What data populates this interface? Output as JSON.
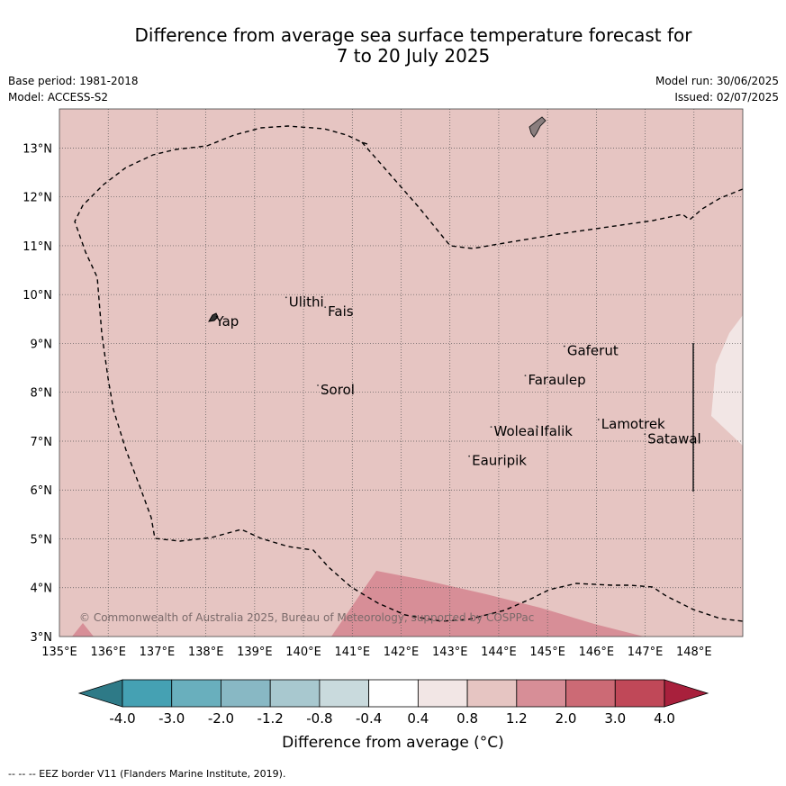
{
  "title": {
    "line1": "Difference from average sea surface temperature forecast for",
    "line2": "7 to 20 July 2025"
  },
  "meta": {
    "base_period": "Base period: 1981-2018",
    "model": "Model: ACCESS-S2",
    "model_run": "Model run: 30/06/2025",
    "issued": "Issued: 02/07/2025"
  },
  "map": {
    "lon_range": [
      135,
      149
    ],
    "lat_range": [
      3,
      13.8
    ],
    "x_ticks": [
      "135°E",
      "136°E",
      "137°E",
      "138°E",
      "139°E",
      "140°E",
      "141°E",
      "142°E",
      "143°E",
      "144°E",
      "145°E",
      "146°E",
      "147°E",
      "148°E"
    ],
    "y_ticks": [
      "3°N",
      "4°N",
      "5°N",
      "6°N",
      "7°N",
      "8°N",
      "9°N",
      "10°N",
      "11°N",
      "12°N",
      "13°N"
    ],
    "background_color": "#e6c5c2",
    "places": [
      {
        "name": "Yap",
        "lon": 138.2,
        "lat": 9.45
      },
      {
        "name": "Ulithi",
        "lon": 139.7,
        "lat": 9.85
      },
      {
        "name": "Fais",
        "lon": 140.5,
        "lat": 9.65
      },
      {
        "name": "Sorol",
        "lon": 140.35,
        "lat": 8.05
      },
      {
        "name": "Gaferut",
        "lon": 145.4,
        "lat": 8.85
      },
      {
        "name": "Faraulep",
        "lon": 144.6,
        "lat": 8.25
      },
      {
        "name": "Lamotrek",
        "lon": 146.1,
        "lat": 7.35
      },
      {
        "name": "Satawal",
        "lon": 147.05,
        "lat": 7.05
      },
      {
        "name": "Woleai",
        "lon": 143.9,
        "lat": 7.2
      },
      {
        "name": "Ifalik",
        "lon": 144.85,
        "lat": 7.2
      },
      {
        "name": "Eauripik",
        "lon": 143.45,
        "lat": 6.6
      }
    ],
    "copyright": "© Commonwealth of Australia 2025, Bureau of Meteorology, supported by COSPPac"
  },
  "colorbar": {
    "ticks": [
      "-4.0",
      "-3.0",
      "-2.0",
      "-1.2",
      "-0.8",
      "-0.4",
      "0.4",
      "0.8",
      "1.2",
      "2.0",
      "3.0",
      "4.0"
    ],
    "colors": [
      "#2e7a87",
      "#45a1b3",
      "#69afbd",
      "#88b8c4",
      "#a8c8cf",
      "#c9dadd",
      "#ffffff",
      "#f2e6e5",
      "#e6c5c2",
      "#d78e97",
      "#cc6a75",
      "#c04858",
      "#a8203c"
    ],
    "label": "Difference from average (°C)"
  },
  "footer": "--  --  -- EEZ border V11 (Flanders Marine Institute, 2019)."
}
